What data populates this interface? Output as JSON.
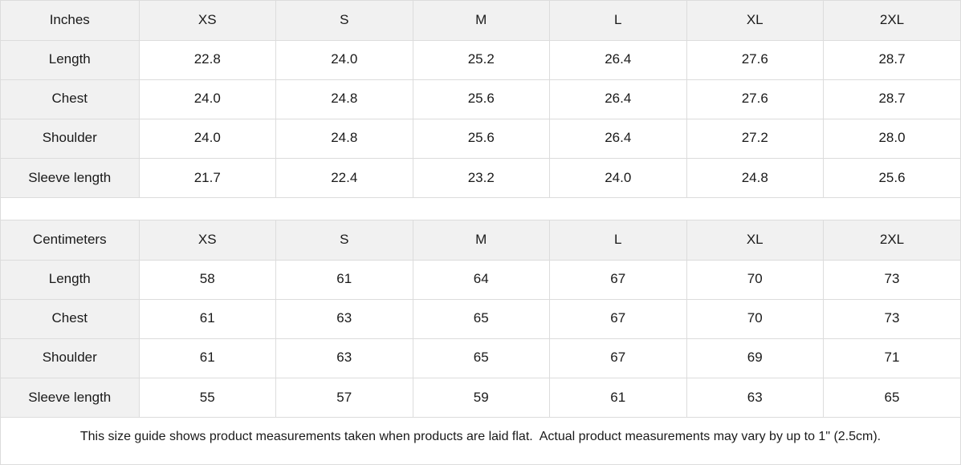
{
  "panel": {
    "tables": [
      {
        "id": "inches",
        "unit_label": "Inches",
        "sizes": [
          "XS",
          "S",
          "M",
          "L",
          "XL",
          "2XL"
        ],
        "rows": [
          {
            "label": "Length",
            "values": [
              "22.8",
              "24.0",
              "25.2",
              "26.4",
              "27.6",
              "28.7"
            ]
          },
          {
            "label": "Chest",
            "values": [
              "24.0",
              "24.8",
              "25.6",
              "26.4",
              "27.6",
              "28.7"
            ]
          },
          {
            "label": "Shoulder",
            "values": [
              "24.0",
              "24.8",
              "25.6",
              "26.4",
              "27.2",
              "28.0"
            ]
          },
          {
            "label": "Sleeve length",
            "values": [
              "21.7",
              "22.4",
              "23.2",
              "24.0",
              "24.8",
              "25.6"
            ]
          }
        ]
      },
      {
        "id": "centimeters",
        "unit_label": "Centimeters",
        "sizes": [
          "XS",
          "S",
          "M",
          "L",
          "XL",
          "2XL"
        ],
        "rows": [
          {
            "label": "Length",
            "values": [
              "58",
              "61",
              "64",
              "67",
              "70",
              "73"
            ]
          },
          {
            "label": "Chest",
            "values": [
              "61",
              "63",
              "65",
              "67",
              "70",
              "73"
            ]
          },
          {
            "label": "Shoulder",
            "values": [
              "61",
              "63",
              "65",
              "67",
              "69",
              "71"
            ]
          },
          {
            "label": "Sleeve length",
            "values": [
              "55",
              "57",
              "59",
              "61",
              "63",
              "65"
            ]
          }
        ]
      }
    ],
    "footer_note": "This size guide shows product measurements taken when products are laid flat.  Actual product measurements may vary by up to 1\" (2.5cm)."
  },
  "colors": {
    "header_bg": "#f1f1f1",
    "border": "#dcdcdc",
    "text": "#1a1a1a",
    "background": "#ffffff"
  }
}
